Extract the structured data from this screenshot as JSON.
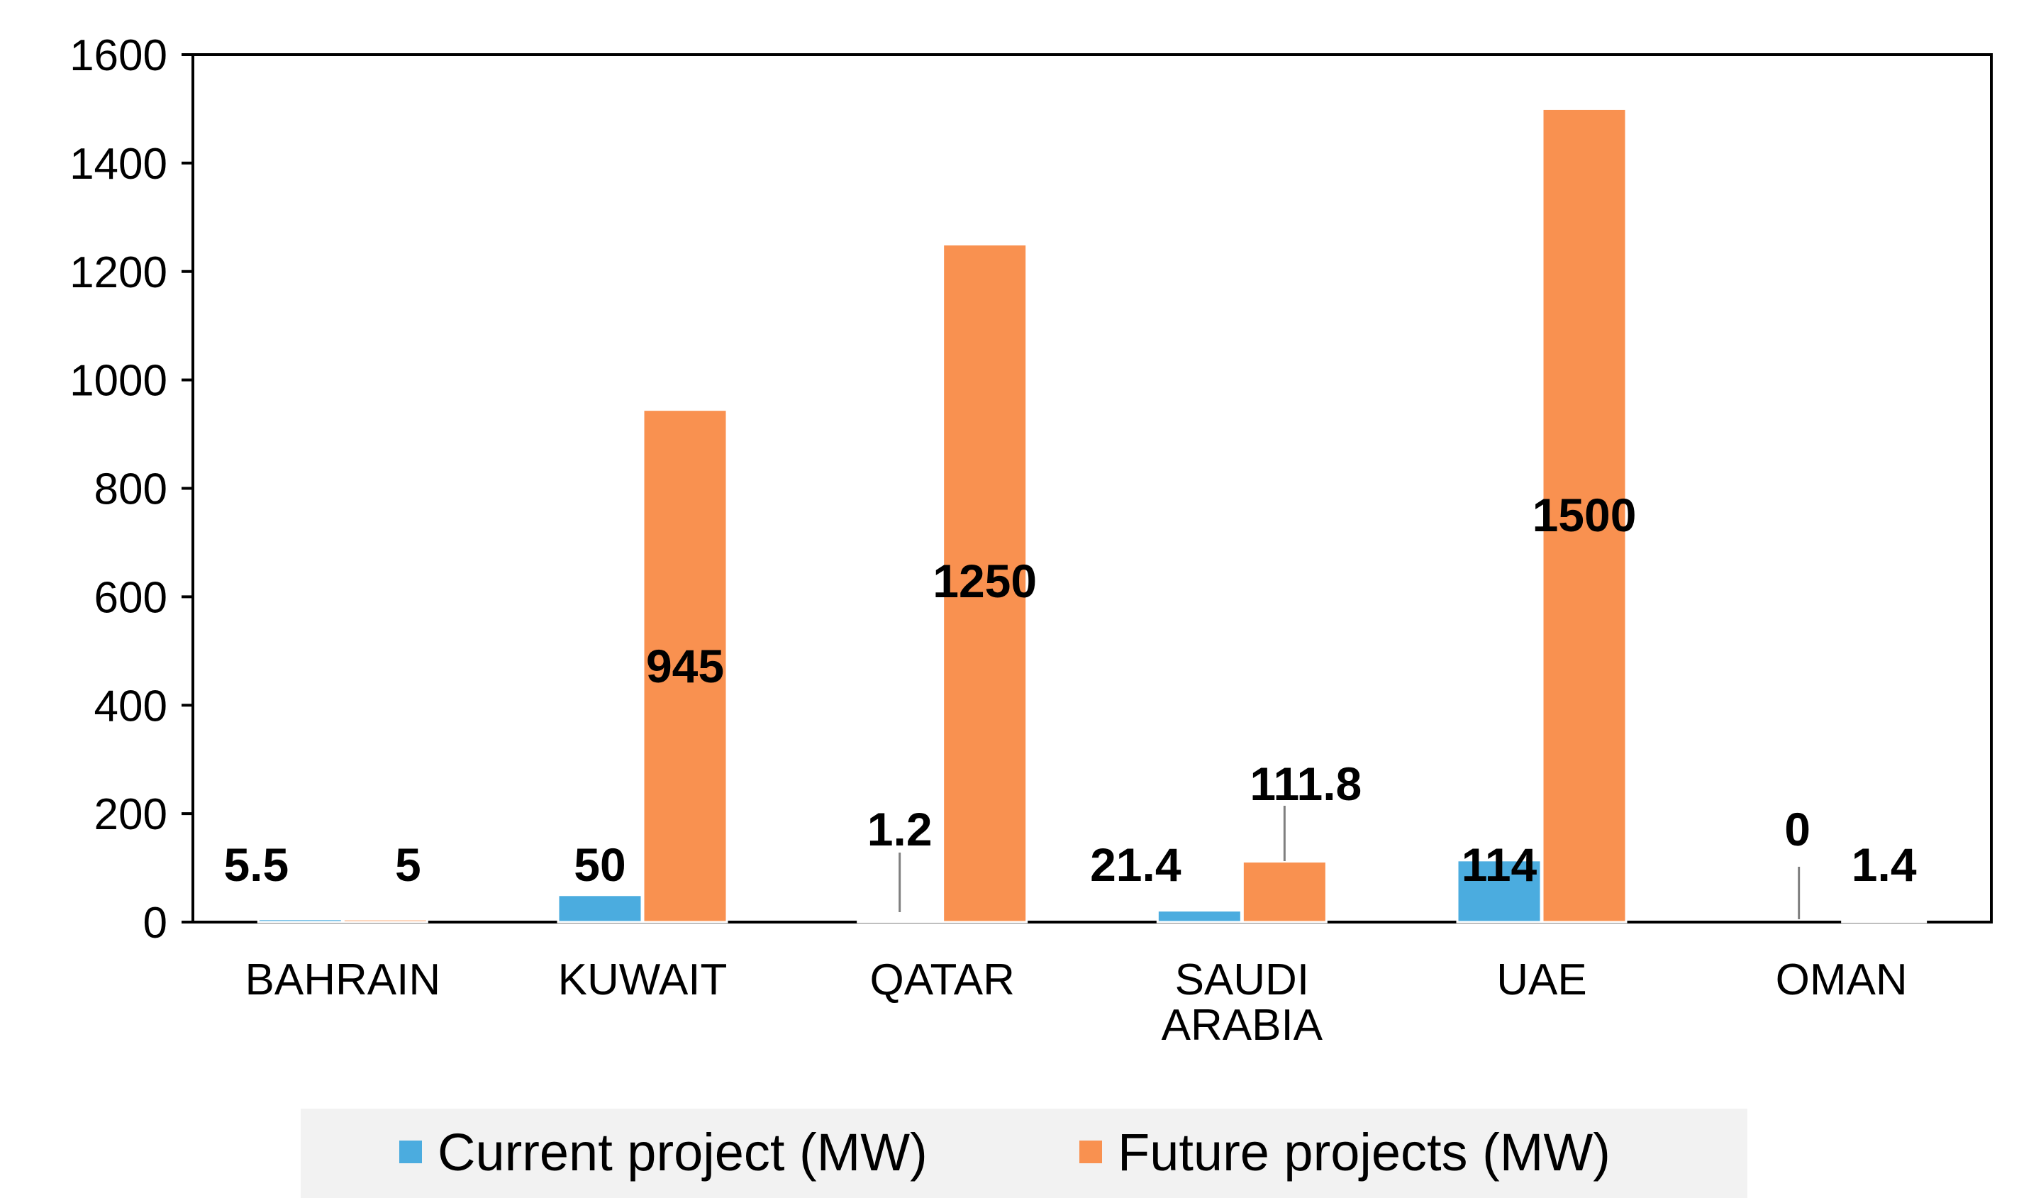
{
  "chart_data": {
    "type": "bar",
    "title": "",
    "xlabel": "",
    "ylabel": "",
    "ylim": [
      0,
      1600
    ],
    "yticks": [
      0,
      200,
      400,
      600,
      800,
      1000,
      1200,
      1400,
      1600
    ],
    "grid": false,
    "legend_position": "bottom",
    "categories": [
      [
        "BAHRAIN"
      ],
      [
        "KUWAIT"
      ],
      [
        "QATAR"
      ],
      [
        "SAUDI",
        "ARABIA"
      ],
      [
        "UAE"
      ],
      [
        "OMAN"
      ]
    ],
    "series": [
      {
        "name": "Current project (MW)",
        "color": "#4bacdf",
        "values": [
          5.5,
          50,
          1.2,
          21.4,
          114,
          0
        ],
        "labels": [
          "5.5",
          "50",
          "1.2",
          "21.4",
          "114",
          "0"
        ]
      },
      {
        "name": "Future projects (MW)",
        "color": "#f99150",
        "values": [
          5,
          945,
          1250,
          111.8,
          1500,
          1.4
        ],
        "labels": [
          "5",
          "945",
          "1250",
          "111.8",
          "1500",
          "1.4"
        ]
      }
    ]
  }
}
